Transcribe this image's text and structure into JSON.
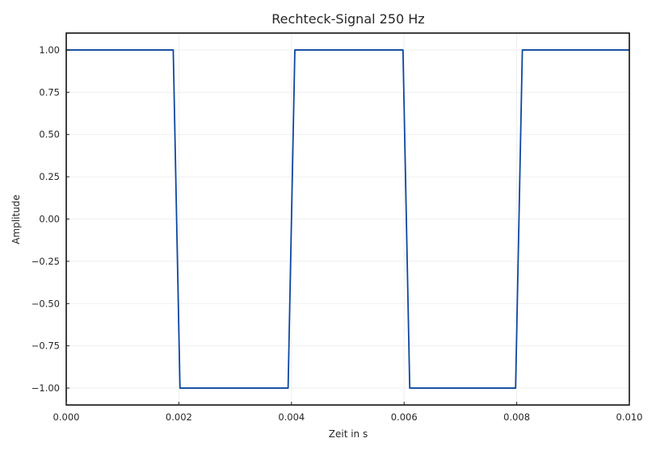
{
  "chart_data": {
    "type": "line",
    "title": "Rechteck-Signal 250 Hz",
    "xlabel": "Zeit in s",
    "ylabel": "Amplitude",
    "xlim": [
      0.0,
      0.01
    ],
    "ylim": [
      -1.1,
      1.1
    ],
    "grid": true,
    "x_ticks": [
      0.0,
      0.002,
      0.004,
      0.006,
      0.008,
      0.01
    ],
    "x_tick_labels": [
      "0.000",
      "0.002",
      "0.004",
      "0.006",
      "0.008",
      "0.010"
    ],
    "y_ticks": [
      1.0,
      0.75,
      0.5,
      0.25,
      0.0,
      -0.25,
      -0.5,
      -0.75,
      -1.0
    ],
    "y_tick_labels": [
      "1.00",
      "0.75",
      "0.50",
      "0.25",
      "0.00",
      "−0.25",
      "−0.50",
      "−0.75",
      "−1.00"
    ],
    "series": [
      {
        "color": "#0d47a1",
        "x": [
          0.0,
          0.0019,
          0.00202,
          0.00394,
          0.00406,
          0.00598,
          0.0061,
          0.00798,
          0.0081,
          0.01
        ],
        "y": [
          1,
          1,
          -1,
          -1,
          1,
          1,
          -1,
          -1,
          1,
          1
        ]
      }
    ]
  }
}
